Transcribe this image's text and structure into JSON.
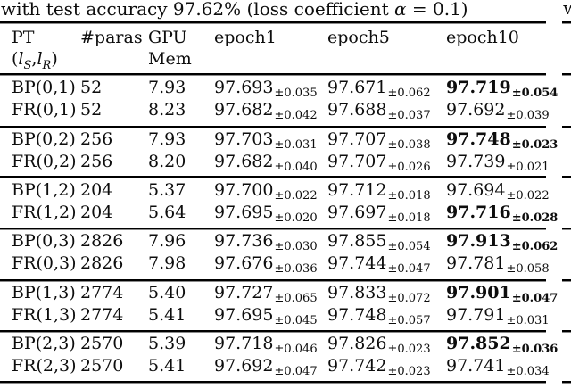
{
  "page": {
    "background": "#ffffff",
    "text_color": "#0d0d0d"
  },
  "caption": {
    "pre": "with test accuracy 97.62% (loss coefficient ",
    "alpha": "α",
    "post": " = 0.1)"
  },
  "adjacent_column": {
    "fragment": "w"
  },
  "table": {
    "header": {
      "col1_line1": "PT",
      "col1_line2": {
        "open": "(",
        "l1": "l",
        "s1": "S",
        "comma": ",",
        "l2": "l",
        "s2": "R",
        "close": ")"
      },
      "col2": "#paras",
      "col3_line1": "GPU",
      "col3_line2": "Mem",
      "col4": "epoch1",
      "col5": "epoch5",
      "col6": "epoch10"
    },
    "rows": [
      {
        "pt": "BP(0,1)",
        "paras": "52",
        "gpu": "7.93",
        "e1": {
          "v": "97.693",
          "s": "±0.035"
        },
        "e5": {
          "v": "97.671",
          "s": "±0.062"
        },
        "e10": {
          "v": "97.719",
          "s": "±0.054",
          "bold": true
        }
      },
      {
        "pt": "FR(0,1)",
        "paras": "52",
        "gpu": "8.23",
        "e1": {
          "v": "97.682",
          "s": "±0.042"
        },
        "e5": {
          "v": "97.688",
          "s": "±0.037"
        },
        "e10": {
          "v": "97.692",
          "s": "±0.039",
          "bold": false
        }
      },
      {
        "pt": "BP(0,2)",
        "paras": "256",
        "gpu": "7.93",
        "e1": {
          "v": "97.703",
          "s": "±0.031"
        },
        "e5": {
          "v": "97.707",
          "s": "±0.038"
        },
        "e10": {
          "v": "97.748",
          "s": "±0.023",
          "bold": true
        }
      },
      {
        "pt": "FR(0,2)",
        "paras": "256",
        "gpu": "8.20",
        "e1": {
          "v": "97.682",
          "s": "±0.040"
        },
        "e5": {
          "v": "97.707",
          "s": "±0.026"
        },
        "e10": {
          "v": "97.739",
          "s": "±0.021",
          "bold": false
        }
      },
      {
        "pt": "BP(1,2)",
        "paras": "204",
        "gpu": "5.37",
        "e1": {
          "v": "97.700",
          "s": "±0.022"
        },
        "e5": {
          "v": "97.712",
          "s": "±0.018"
        },
        "e10": {
          "v": "97.694",
          "s": "±0.022",
          "bold": false
        }
      },
      {
        "pt": "FR(1,2)",
        "paras": "204",
        "gpu": "5.64",
        "e1": {
          "v": "97.695",
          "s": "±0.020"
        },
        "e5": {
          "v": "97.697",
          "s": "±0.018"
        },
        "e10": {
          "v": "97.716",
          "s": "±0.028",
          "bold": true
        }
      },
      {
        "pt": "BP(0,3)",
        "paras": "2826",
        "gpu": "7.96",
        "e1": {
          "v": "97.736",
          "s": "±0.030"
        },
        "e5": {
          "v": "97.855",
          "s": "±0.054"
        },
        "e10": {
          "v": "97.913",
          "s": "±0.062",
          "bold": true
        }
      },
      {
        "pt": "FR(0,3)",
        "paras": "2826",
        "gpu": "7.98",
        "e1": {
          "v": "97.676",
          "s": "±0.036"
        },
        "e5": {
          "v": "97.744",
          "s": "±0.047"
        },
        "e10": {
          "v": "97.781",
          "s": "±0.058",
          "bold": false
        }
      },
      {
        "pt": "BP(1,3)",
        "paras": "2774",
        "gpu": "5.40",
        "e1": {
          "v": "97.727",
          "s": "±0.065"
        },
        "e5": {
          "v": "97.833",
          "s": "±0.072"
        },
        "e10": {
          "v": "97.901",
          "s": "±0.047",
          "bold": true
        }
      },
      {
        "pt": "FR(1,3)",
        "paras": "2774",
        "gpu": "5.41",
        "e1": {
          "v": "97.695",
          "s": "±0.045"
        },
        "e5": {
          "v": "97.748",
          "s": "±0.057"
        },
        "e10": {
          "v": "97.791",
          "s": "±0.031",
          "bold": false
        }
      },
      {
        "pt": "BP(2,3)",
        "paras": "2570",
        "gpu": "5.39",
        "e1": {
          "v": "97.718",
          "s": "±0.046"
        },
        "e5": {
          "v": "97.826",
          "s": "±0.023"
        },
        "e10": {
          "v": "97.852",
          "s": "±0.036",
          "bold": true
        }
      },
      {
        "pt": "FR(2,3)",
        "paras": "2570",
        "gpu": "5.41",
        "e1": {
          "v": "97.692",
          "s": "±0.047"
        },
        "e5": {
          "v": "97.742",
          "s": "±0.023"
        },
        "e10": {
          "v": "97.741",
          "s": "±0.034",
          "bold": false
        }
      }
    ]
  }
}
